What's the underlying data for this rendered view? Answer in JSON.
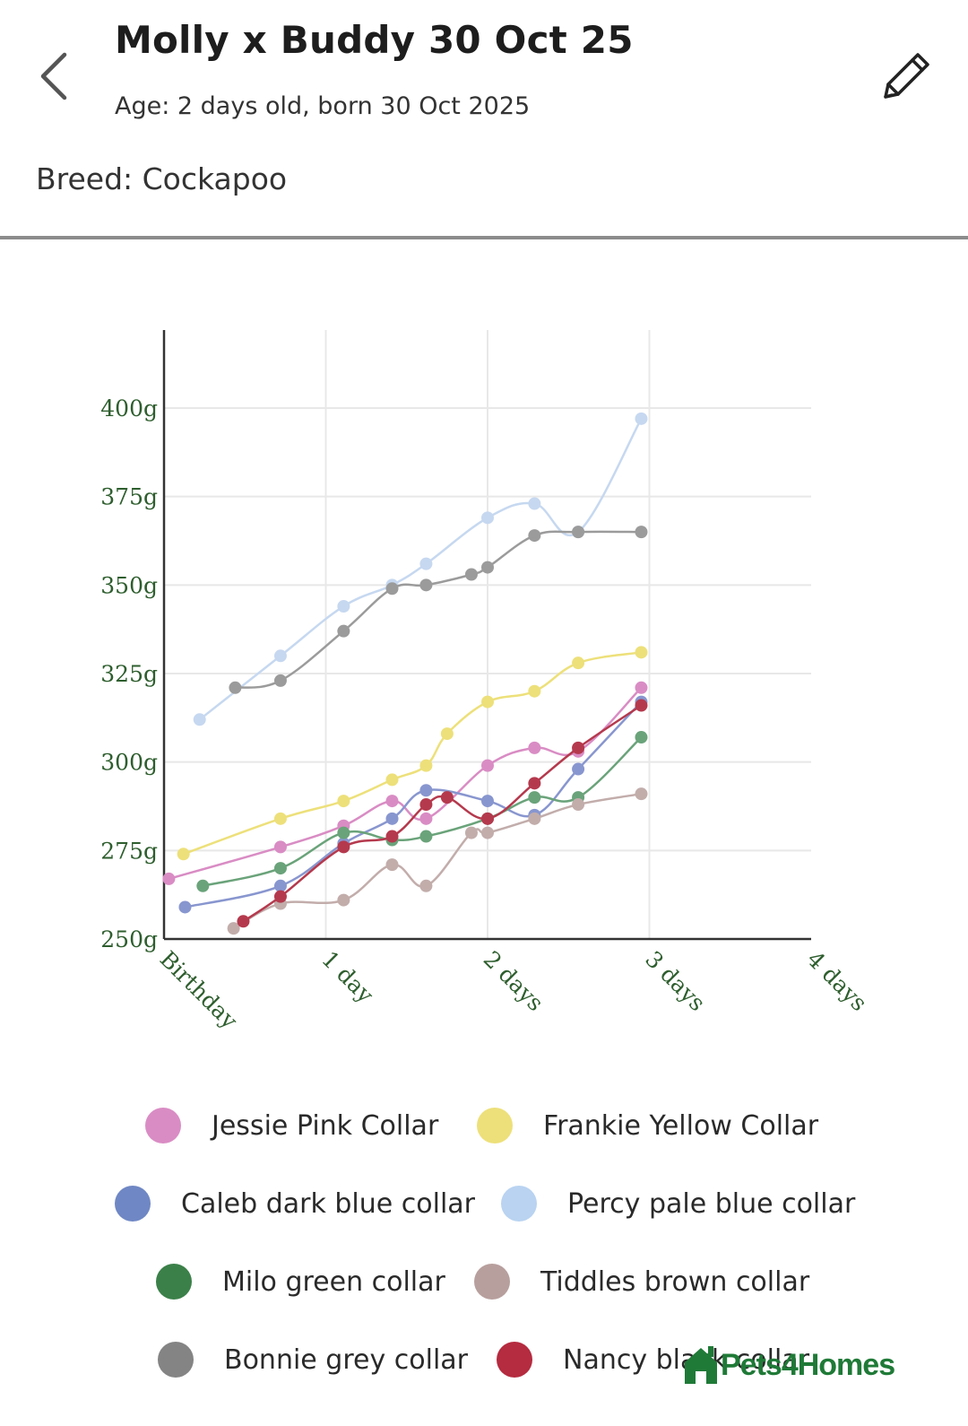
{
  "header": {
    "title": "Molly x Buddy 30 Oct 25",
    "age_text": "Age: 2 days old, born 30 Oct 2025",
    "breed_text": "Breed: Cockapoo"
  },
  "icons": {
    "back": "chevron-left-icon",
    "edit": "pencil-icon",
    "watermark_logo": "house-logo-icon"
  },
  "watermark": {
    "text": "Pets4Homes"
  },
  "colors": {
    "axis_text": "#2e5e2e",
    "grid": "#e8e8e8",
    "axis_line": "#333333",
    "brand_green": "#1f7a37"
  },
  "chart_data": {
    "type": "line",
    "title": "",
    "xlabel": "",
    "ylabel": "",
    "x_ticks": [
      {
        "value": 0,
        "label": "Birthday"
      },
      {
        "value": 1,
        "label": "1 day"
      },
      {
        "value": 2,
        "label": "2 days"
      },
      {
        "value": 3,
        "label": "3 days"
      },
      {
        "value": 4,
        "label": "4 days"
      }
    ],
    "y_ticks": [
      {
        "value": 250,
        "label": "250g"
      },
      {
        "value": 275,
        "label": "275g"
      },
      {
        "value": 300,
        "label": "300g"
      },
      {
        "value": 325,
        "label": "325g"
      },
      {
        "value": 350,
        "label": "350g"
      },
      {
        "value": 375,
        "label": "375g"
      },
      {
        "value": 400,
        "label": "400g"
      }
    ],
    "xlim": [
      0,
      4
    ],
    "ylim": [
      250,
      422
    ],
    "grid": true,
    "legend_position": "bottom",
    "series": [
      {
        "name": "Jessie Pink Collar",
        "color": "#d98cc4",
        "points": [
          [
            0.03,
            267
          ],
          [
            0.72,
            276
          ],
          [
            1.11,
            282
          ],
          [
            1.41,
            289
          ],
          [
            1.62,
            284
          ],
          [
            2.0,
            299
          ],
          [
            2.29,
            304
          ],
          [
            2.56,
            303
          ],
          [
            2.95,
            321
          ]
        ]
      },
      {
        "name": "Frankie Yellow Collar",
        "color": "#ede07a",
        "points": [
          [
            0.12,
            274
          ],
          [
            0.72,
            284
          ],
          [
            1.11,
            289
          ],
          [
            1.41,
            295
          ],
          [
            1.62,
            299
          ],
          [
            1.75,
            308
          ],
          [
            2.0,
            317
          ],
          [
            2.29,
            320
          ],
          [
            2.56,
            328
          ],
          [
            2.95,
            331
          ]
        ]
      },
      {
        "name": "Caleb dark blue collar",
        "color": "#8896cf",
        "points": [
          [
            0.13,
            259
          ],
          [
            0.72,
            265
          ],
          [
            1.11,
            277
          ],
          [
            1.41,
            284
          ],
          [
            1.62,
            292
          ],
          [
            2.0,
            289
          ],
          [
            2.29,
            285
          ],
          [
            2.56,
            298
          ],
          [
            2.95,
            317
          ]
        ]
      },
      {
        "name": "Percy pale blue collar",
        "color": "#c6d8f0",
        "points": [
          [
            0.22,
            312
          ],
          [
            0.72,
            330
          ],
          [
            1.11,
            344
          ],
          [
            1.41,
            350
          ],
          [
            1.62,
            356
          ],
          [
            2.0,
            369
          ],
          [
            2.29,
            373
          ],
          [
            2.56,
            365
          ],
          [
            2.95,
            397
          ]
        ]
      },
      {
        "name": "Milo green collar",
        "color": "#6aa37a",
        "points": [
          [
            0.24,
            265
          ],
          [
            0.72,
            270
          ],
          [
            1.11,
            280
          ],
          [
            1.41,
            278
          ],
          [
            1.62,
            279
          ],
          [
            2.0,
            284
          ],
          [
            2.29,
            290
          ],
          [
            2.56,
            290
          ],
          [
            2.95,
            307
          ]
        ]
      },
      {
        "name": "Tiddles brown collar",
        "color": "#c2adab",
        "points": [
          [
            0.43,
            253
          ],
          [
            0.72,
            260
          ],
          [
            1.11,
            261
          ],
          [
            1.41,
            271
          ],
          [
            1.62,
            265
          ],
          [
            1.9,
            280
          ],
          [
            2.0,
            280
          ],
          [
            2.29,
            284
          ],
          [
            2.56,
            288
          ],
          [
            2.95,
            291
          ]
        ]
      },
      {
        "name": "Bonnie grey collar",
        "color": "#9b9b9b",
        "points": [
          [
            0.44,
            321
          ],
          [
            0.72,
            323
          ],
          [
            1.11,
            337
          ],
          [
            1.41,
            349
          ],
          [
            1.62,
            350
          ],
          [
            1.9,
            353
          ],
          [
            2.0,
            355
          ],
          [
            2.29,
            364
          ],
          [
            2.56,
            365
          ],
          [
            2.95,
            365
          ]
        ]
      },
      {
        "name": "Nancy black collar",
        "color": "#b5394d",
        "points": [
          [
            0.49,
            255
          ],
          [
            0.72,
            262
          ],
          [
            1.11,
            276
          ],
          [
            1.41,
            279
          ],
          [
            1.62,
            288
          ],
          [
            1.75,
            290
          ],
          [
            2.0,
            284
          ],
          [
            2.29,
            294
          ],
          [
            2.56,
            304
          ],
          [
            2.95,
            316
          ]
        ]
      }
    ]
  },
  "legend": [
    {
      "label": "Jessie Pink Collar",
      "color": "#d98cc4"
    },
    {
      "label": "Frankie Yellow Collar",
      "color": "#ede07a"
    },
    {
      "label": "Caleb dark blue collar",
      "color": "#6f87c4"
    },
    {
      "label": "Percy pale blue collar",
      "color": "#b9d3f1"
    },
    {
      "label": "Milo green collar",
      "color": "#3b8049"
    },
    {
      "label": "Tiddles brown collar",
      "color": "#b79f9d"
    },
    {
      "label": "Bonnie grey collar",
      "color": "#848484"
    },
    {
      "label": "Nancy black collar",
      "color": "#b52b3f"
    }
  ]
}
